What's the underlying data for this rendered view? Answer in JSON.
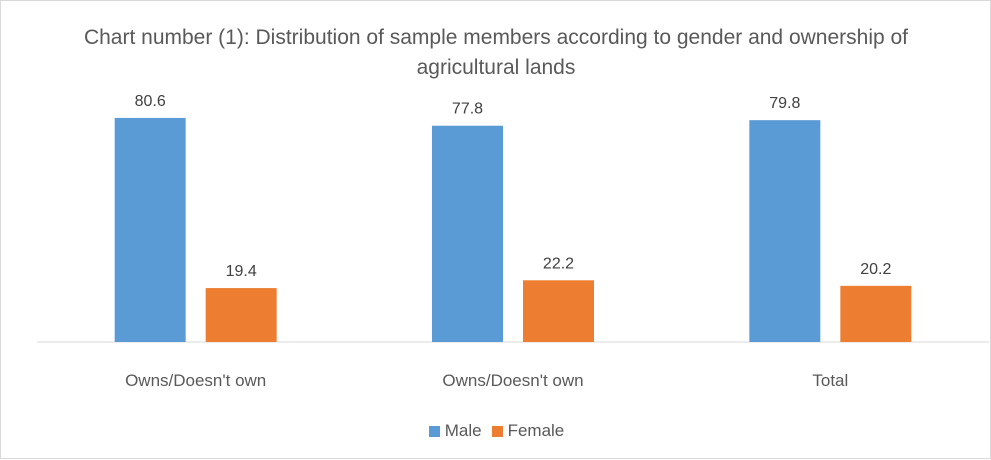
{
  "chart_data": {
    "type": "bar",
    "title": "Chart number (1): Distribution of sample members according to gender and ownership of agricultural lands",
    "categories": [
      "Owns/Doesn't own",
      "Owns/Doesn't own",
      "Total"
    ],
    "series": [
      {
        "name": "Male",
        "color": "#5b9bd5",
        "values": [
          80.6,
          77.8,
          79.8
        ]
      },
      {
        "name": "Female",
        "color": "#ed7d31",
        "values": [
          19.4,
          22.2,
          20.2
        ]
      }
    ],
    "xlabel": "",
    "ylabel": "",
    "ylim": [
      0,
      100
    ],
    "grid": false,
    "legend": "bottom",
    "data_labels": true
  }
}
